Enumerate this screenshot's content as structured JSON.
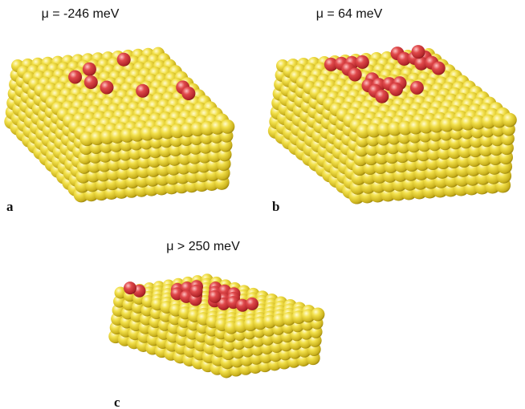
{
  "panels": [
    {
      "title": "μ = -246 meV",
      "label": "a"
    },
    {
      "title": "μ = 64 meV",
      "label": "b"
    },
    {
      "title": "μ > 250 meV",
      "label": "c"
    }
  ]
}
